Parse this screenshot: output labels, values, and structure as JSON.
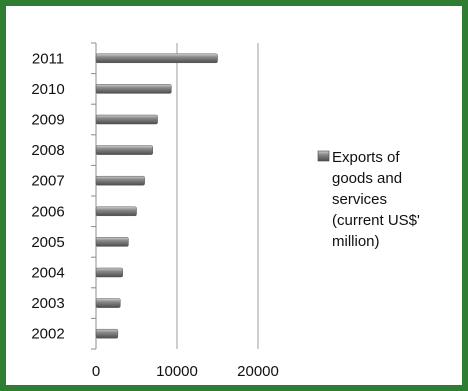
{
  "chart_data": {
    "type": "bar",
    "orientation": "horizontal",
    "categories": [
      "2011",
      "2010",
      "2009",
      "2008",
      "2007",
      "2006",
      "2005",
      "2004",
      "2003",
      "2002"
    ],
    "series": [
      {
        "name": "Exports of goods and services (current US$' million)",
        "values": [
          15000,
          9300,
          7600,
          7000,
          6000,
          5000,
          4000,
          3300,
          3000,
          2700
        ]
      }
    ],
    "xlim": [
      0,
      20000
    ],
    "xticks": [
      "0",
      "10000",
      "20000"
    ],
    "grid": "vertical",
    "legend": "right",
    "colors": {
      "bar": "#7a7a7a",
      "grid": "#9e9e9e",
      "frame": "#2e7d32"
    }
  },
  "legend": {
    "lines": [
      "Exports of",
      "goods and",
      "services",
      "(current US$'",
      "million)"
    ]
  }
}
